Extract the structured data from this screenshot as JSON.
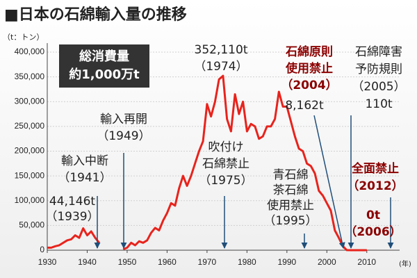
{
  "chart_data": {
    "type": "line",
    "title": "■日本の石綿輸入量の推移",
    "y_unit": "（t：トン）",
    "x_unit": "(年)",
    "x": [
      1930,
      1931,
      1932,
      1933,
      1934,
      1935,
      1936,
      1937,
      1938,
      1939,
      1940,
      1941,
      1942,
      1943,
      1944,
      1945,
      1946,
      1947,
      1948,
      1949,
      1950,
      1951,
      1952,
      1953,
      1954,
      1955,
      1956,
      1957,
      1958,
      1959,
      1960,
      1961,
      1962,
      1963,
      1964,
      1965,
      1966,
      1967,
      1968,
      1969,
      1970,
      1971,
      1972,
      1973,
      1974,
      1975,
      1976,
      1977,
      1978,
      1979,
      1980,
      1981,
      1982,
      1983,
      1984,
      1985,
      1986,
      1987,
      1988,
      1989,
      1990,
      1991,
      1992,
      1993,
      1994,
      1995,
      1996,
      1997,
      1998,
      1999,
      2000,
      2001,
      2002,
      2003,
      2004,
      2005,
      2006,
      2007,
      2008,
      2009,
      2010
    ],
    "series": [
      {
        "name": "石綿輸入量",
        "color": "#e8231c",
        "values": [
          5000,
          5000,
          8000,
          10000,
          15000,
          20000,
          22000,
          30000,
          25000,
          44146,
          30000,
          38000,
          25000,
          15000,
          null,
          null,
          null,
          null,
          null,
          2000,
          5000,
          15000,
          10000,
          18000,
          15000,
          20000,
          35000,
          45000,
          40000,
          60000,
          75000,
          95000,
          90000,
          125000,
          150000,
          130000,
          150000,
          175000,
          200000,
          220000,
          295000,
          270000,
          300000,
          345000,
          352110,
          265000,
          240000,
          315000,
          275000,
          300000,
          240000,
          255000,
          250000,
          225000,
          230000,
          250000,
          250000,
          265000,
          320000,
          290000,
          290000,
          260000,
          230000,
          205000,
          200000,
          175000,
          170000,
          155000,
          120000,
          110000,
          95000,
          80000,
          40000,
          25000,
          8162,
          110,
          0,
          0,
          0,
          0,
          0
        ]
      }
    ],
    "xlim": [
      1930,
      2017
    ],
    "xticks": [
      1930,
      1940,
      1950,
      1960,
      1970,
      1980,
      1990,
      2000,
      2010
    ],
    "ylim": [
      0,
      400000
    ],
    "yticks": [
      0,
      {
        "value": 50000,
        "label": "50,000"
      },
      {
        "value": 100000,
        "label": "100,000"
      },
      {
        "value": 150000,
        "label": "150,000"
      },
      {
        "value": 200000,
        "label": "200,000"
      },
      {
        "value": 250000,
        "label": "250,000"
      },
      {
        "value": 300000,
        "label": "300,000"
      },
      {
        "value": 350000,
        "label": "350,000"
      },
      {
        "value": 400000,
        "label": "400,000"
      }
    ],
    "grid": true,
    "box": [
      "総消費量",
      "約1,000万t"
    ],
    "annotations": [
      {
        "lines": [
          "44,146t",
          "（1939）"
        ],
        "color": "#222222"
      },
      {
        "lines": [
          "輸入中断",
          "（1941）"
        ],
        "color": "#222222"
      },
      {
        "lines": [
          "輸入再開",
          "（1949）"
        ],
        "color": "#222222"
      },
      {
        "lines": [
          "352,110t",
          "（1974）"
        ],
        "color": "#222222"
      },
      {
        "lines": [
          "吹付け",
          "石綿禁止",
          "（1975）"
        ],
        "color": "#222222"
      },
      {
        "lines": [
          "青石綿",
          "茶石綿",
          "使用禁止",
          "（1995）"
        ],
        "color": "#222222"
      },
      {
        "lines": [
          "石綿原則",
          "使用禁止",
          "（2004）"
        ],
        "color": "#8b0000"
      },
      {
        "lines": [
          "8,162t"
        ],
        "color": "#222222"
      },
      {
        "lines": [
          "石綿障害",
          "予防規則",
          "（2005）",
          "110t"
        ],
        "color": "#222222"
      },
      {
        "lines": [
          "全面禁止",
          "（2012）"
        ],
        "color": "#8b0000"
      },
      {
        "lines": [
          "0t",
          "（2006）"
        ],
        "color": "#8b0000"
      }
    ]
  }
}
